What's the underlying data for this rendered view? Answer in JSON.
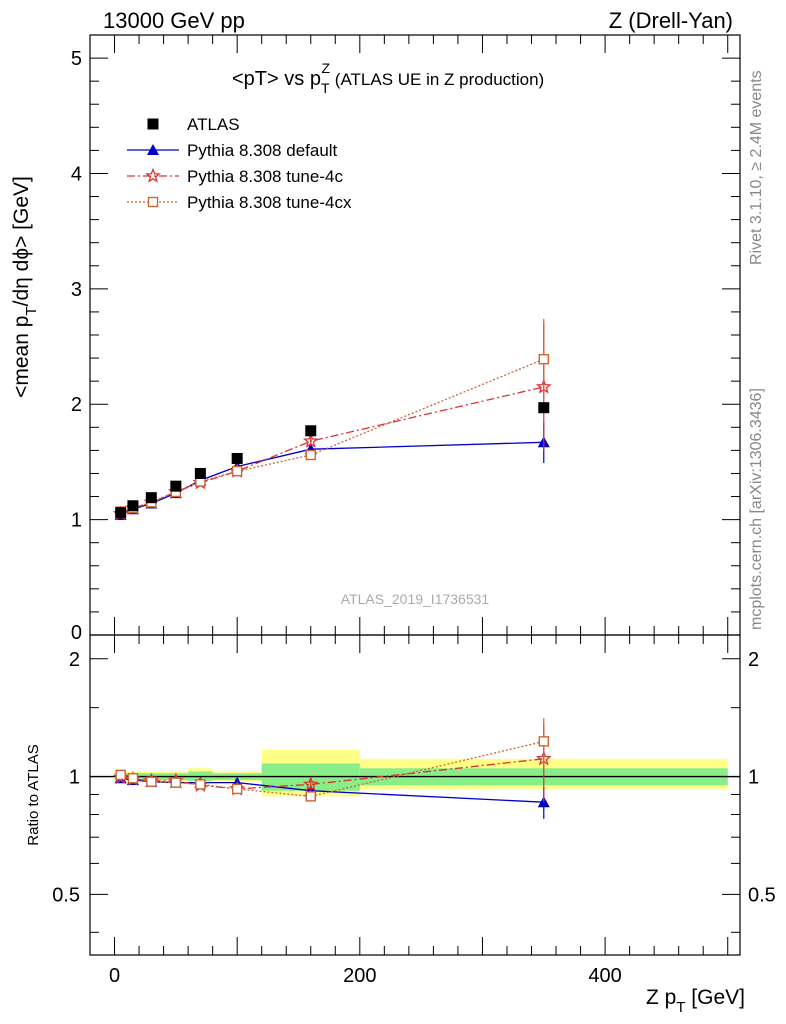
{
  "header": {
    "left": "13000 GeV pp",
    "right": "Z (Drell-Yan)"
  },
  "side_text": {
    "rivet": "Rivet 3.1.10, ≥ 2.4M events",
    "mcplots": "mcplots.cern.ch [arXiv:1306.3436]"
  },
  "chart_data": [
    {
      "type": "line",
      "title_main": "<pT> vs p",
      "title_sup": "Z",
      "title_sub": "T",
      "title_rest": " (ATLAS UE in Z production)",
      "ylabel_main": "<mean p",
      "ylabel_sub": "T",
      "ylabel_rest": "/dη dϕ> [GeV]",
      "watermark": "ATLAS_2019_I1736531",
      "xlim": [
        -20,
        510
      ],
      "ylim": [
        0,
        5.2
      ],
      "y_ticks": [
        1,
        2,
        3,
        4,
        5
      ],
      "y_tick_labels": [
        "1",
        "2",
        "3",
        "4",
        "5"
      ],
      "y_zero_label": "0",
      "legend_position": "top-left",
      "series": [
        {
          "name": "ATLAS",
          "color": "#000000",
          "marker": "square",
          "x": [
            5,
            15,
            30,
            50,
            70,
            100,
            160,
            350
          ],
          "y": [
            1.06,
            1.12,
            1.19,
            1.29,
            1.4,
            1.53,
            1.77,
            1.97
          ]
        },
        {
          "name": "Pythia 8.308 default",
          "color": "#0000cc",
          "marker": "triangle",
          "line": "solid",
          "x": [
            5,
            15,
            30,
            50,
            70,
            100,
            160,
            350
          ],
          "y": [
            1.04,
            1.09,
            1.14,
            1.23,
            1.34,
            1.46,
            1.61,
            1.67
          ],
          "err": [
            0,
            0,
            0,
            0,
            0,
            0,
            0.03,
            0.18
          ]
        },
        {
          "name": "Pythia 8.308 tune-4c",
          "color": "#dd3333",
          "marker": "star",
          "line": "dashdot",
          "x": [
            5,
            15,
            30,
            50,
            70,
            100,
            160,
            350
          ],
          "y": [
            1.05,
            1.1,
            1.15,
            1.24,
            1.32,
            1.42,
            1.68,
            2.15
          ],
          "err": [
            0,
            0,
            0,
            0,
            0,
            0,
            0.04,
            0.55
          ]
        },
        {
          "name": "Pythia 8.308 tune-4cx",
          "color": "#cc6633",
          "marker": "opensquare",
          "line": "dotted",
          "x": [
            5,
            15,
            30,
            50,
            70,
            100,
            160,
            350
          ],
          "y": [
            1.07,
            1.1,
            1.15,
            1.24,
            1.33,
            1.42,
            1.56,
            2.39
          ],
          "err": [
            0,
            0,
            0,
            0,
            0,
            0,
            0.03,
            0.35
          ]
        }
      ]
    },
    {
      "type": "line",
      "ylabel": "Ratio to ATLAS",
      "xlabel_main": "Z p",
      "xlabel_sub": "T",
      "xlabel_rest": " [GeV]",
      "xlim": [
        -20,
        510
      ],
      "x_ticks": [
        0,
        200,
        400
      ],
      "x_tick_labels": [
        "0",
        "200",
        "400"
      ],
      "ylim": [
        0.35,
        2.3
      ],
      "y_ticks": [
        0.5,
        1,
        2
      ],
      "y_tick_labels": [
        "0.5",
        "1",
        "2"
      ],
      "bands": [
        {
          "x0": 0,
          "x1": 10,
          "lo_yellow": 0.97,
          "hi_yellow": 1.03,
          "lo_green": 0.98,
          "hi_green": 1.02
        },
        {
          "x0": 10,
          "x1": 20,
          "lo_yellow": 0.97,
          "hi_yellow": 1.03,
          "lo_green": 0.98,
          "hi_green": 1.02
        },
        {
          "x0": 20,
          "x1": 40,
          "lo_yellow": 0.97,
          "hi_yellow": 1.03,
          "lo_green": 0.98,
          "hi_green": 1.02
        },
        {
          "x0": 40,
          "x1": 60,
          "lo_yellow": 0.97,
          "hi_yellow": 1.03,
          "lo_green": 0.98,
          "hi_green": 1.02
        },
        {
          "x0": 60,
          "x1": 80,
          "lo_yellow": 0.96,
          "hi_yellow": 1.05,
          "lo_green": 0.975,
          "hi_green": 1.03
        },
        {
          "x0": 80,
          "x1": 120,
          "lo_yellow": 0.97,
          "hi_yellow": 1.03,
          "lo_green": 0.98,
          "hi_green": 1.02
        },
        {
          "x0": 120,
          "x1": 200,
          "lo_yellow": 0.89,
          "hi_yellow": 1.17,
          "lo_green": 0.92,
          "hi_green": 1.08
        },
        {
          "x0": 200,
          "x1": 500,
          "lo_yellow": 0.93,
          "hi_yellow": 1.11,
          "lo_green": 0.95,
          "hi_green": 1.05
        }
      ],
      "series": [
        {
          "name": "Pythia 8.308 default",
          "color": "#0000cc",
          "marker": "triangle",
          "line": "solid",
          "x": [
            5,
            15,
            30,
            50,
            70,
            100,
            160,
            350
          ],
          "y": [
            0.99,
            0.98,
            0.97,
            0.965,
            0.965,
            0.965,
            0.92,
            0.86
          ],
          "err": [
            0,
            0,
            0,
            0,
            0,
            0,
            0.02,
            0.08
          ]
        },
        {
          "name": "Pythia 8.308 tune-4c",
          "color": "#dd3333",
          "marker": "star",
          "line": "dashdot",
          "x": [
            5,
            15,
            30,
            50,
            70,
            100,
            160,
            350
          ],
          "y": [
            0.995,
            0.985,
            0.975,
            0.975,
            0.95,
            0.93,
            0.955,
            1.11
          ],
          "err": [
            0,
            0,
            0,
            0,
            0,
            0,
            0.04,
            0.25
          ]
        },
        {
          "name": "Pythia 8.308 tune-4cx",
          "color": "#cc6633",
          "marker": "opensquare",
          "line": "dotted",
          "x": [
            5,
            15,
            30,
            50,
            70,
            100,
            160,
            350
          ],
          "y": [
            1.01,
            0.99,
            0.97,
            0.965,
            0.955,
            0.93,
            0.89,
            1.23
          ],
          "err": [
            0,
            0,
            0,
            0,
            0,
            0,
            0.02,
            0.18
          ]
        }
      ]
    }
  ]
}
